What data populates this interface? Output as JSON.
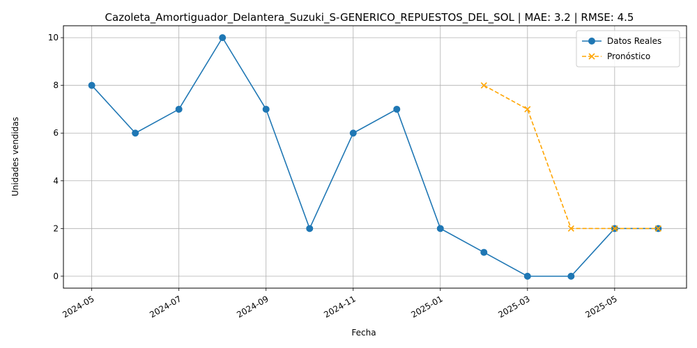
{
  "chart_data": {
    "type": "line",
    "title": "Cazoleta_Amortiguador_Delantera_Suzuki_S-GENERICO_REPUESTOS_DEL_SOL | MAE: 3.2 | RMSE: 4.5",
    "xlabel": "Fecha",
    "ylabel": "Unidades vendidas",
    "x_tick_labels": [
      "2024-05",
      "2024-07",
      "2024-09",
      "2024-11",
      "2025-01",
      "2025-03",
      "2025-05"
    ],
    "y_tick_labels": [
      "0",
      "2",
      "4",
      "6",
      "8",
      "10"
    ],
    "ylim": [
      -0.5,
      10.5
    ],
    "grid": true,
    "legend_position": "top-right",
    "series": [
      {
        "name": "Datos Reales",
        "color": "#1f77b4",
        "marker": "circle",
        "linestyle": "solid",
        "x": [
          "2024-05",
          "2024-06",
          "2024-07",
          "2024-08",
          "2024-09",
          "2024-10",
          "2024-11",
          "2024-12",
          "2025-01",
          "2025-02",
          "2025-03",
          "2025-04",
          "2025-05",
          "2025-06"
        ],
        "values": [
          8,
          6,
          7,
          10,
          7,
          2,
          6,
          7,
          2,
          1,
          0,
          0,
          2,
          2
        ]
      },
      {
        "name": "Pronóstico",
        "color": "#ffa500",
        "marker": "x",
        "linestyle": "dashed",
        "x": [
          "2025-02",
          "2025-03",
          "2025-04",
          "2025-05",
          "2025-06"
        ],
        "values": [
          8,
          7,
          2,
          2,
          2
        ]
      }
    ]
  }
}
